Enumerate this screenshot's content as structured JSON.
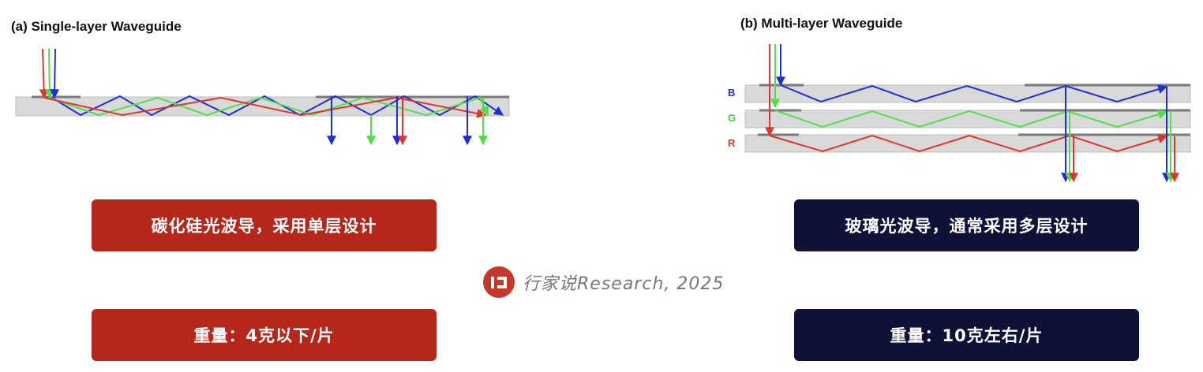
{
  "panel_a": {
    "title": "(a) Single-layer Waveguide",
    "caption": "碳化硅光波导，采用单层设计",
    "weight": "重量：4克以下/片"
  },
  "panel_b": {
    "title": "(b) Multi-layer Waveguide",
    "layers": [
      "B",
      "G",
      "R"
    ],
    "caption": "玻璃光波导，通常采用多层设计",
    "weight": "重量：10克左右/片"
  },
  "watermark": {
    "text": "行家说Research, 2025"
  },
  "colors": {
    "blue": "#1f2fd6",
    "green": "#4fe04a",
    "red": "#e0352a",
    "waveguide": "#d9d9d9",
    "grating": "#7a7a7a",
    "caption_red": "#b5271a",
    "caption_navy": "#0e1236",
    "logo": "#c4382b"
  }
}
